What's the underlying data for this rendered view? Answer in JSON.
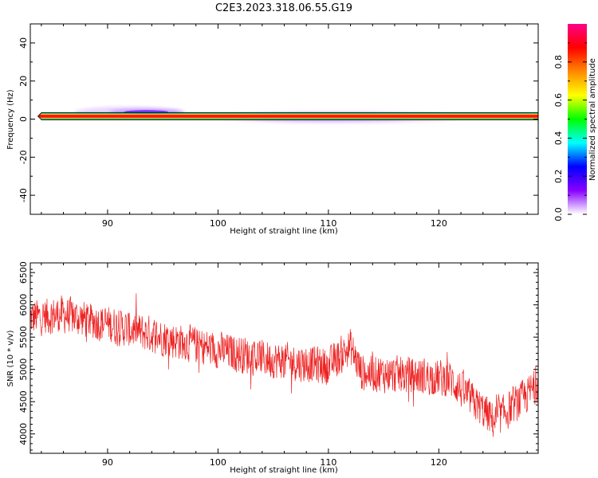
{
  "figure": {
    "title": "C2E3.2023.318.06.55.G19"
  },
  "chart_data": [
    {
      "type": "heatmap",
      "xlabel": "Height of straight line (km)",
      "ylabel": "Frequency (Hz)",
      "xlim": [
        83,
        129
      ],
      "ylim": [
        -50,
        50
      ],
      "xticks": [
        90,
        100,
        110,
        120
      ],
      "yticks": [
        -40,
        -20,
        0,
        20,
        40
      ],
      "band_center_hz": 1.5,
      "band_x_range": [
        83.7,
        129
      ],
      "secondary_lobes": [
        {
          "x_range": [
            87,
            97
          ],
          "center_x": 93.5,
          "y_hz": 3.5,
          "peak_amplitude": 0.25
        },
        {
          "x_range": [
            100,
            122
          ],
          "center_x": 110,
          "y_hz": 1.0,
          "peak_amplitude": 0.15
        }
      ],
      "colorbar": {
        "label": "Normalized spectral amplitude",
        "range": [
          0,
          1
        ],
        "ticks": [
          0.0,
          0.2,
          0.4,
          0.6,
          0.8
        ],
        "colors": [
          "#ffffff",
          "#8800ff",
          "#0000ff",
          "#00ffff",
          "#00ff00",
          "#ffff00",
          "#ff8800",
          "#ff0000",
          "#ff0088"
        ]
      },
      "line_color": "#ff0000"
    },
    {
      "type": "line",
      "xlabel": "Height of straight line (km)",
      "ylabel": "SNR (10 * v/v)",
      "xlim": [
        83,
        129
      ],
      "ylim": [
        3700,
        6650
      ],
      "xticks": [
        90,
        100,
        110,
        120
      ],
      "yticks": [
        4000,
        4500,
        5000,
        5500,
        6000,
        6500
      ],
      "line_color": "#ee2222",
      "trend_points": [
        {
          "x": 83,
          "y": 5800
        },
        {
          "x": 86,
          "y": 5850
        },
        {
          "x": 90,
          "y": 5700
        },
        {
          "x": 95,
          "y": 5500
        },
        {
          "x": 100,
          "y": 5300
        },
        {
          "x": 105,
          "y": 5150
        },
        {
          "x": 110,
          "y": 5050
        },
        {
          "x": 112,
          "y": 5350
        },
        {
          "x": 113,
          "y": 4950
        },
        {
          "x": 118,
          "y": 4900
        },
        {
          "x": 121,
          "y": 4850
        },
        {
          "x": 125,
          "y": 4200
        },
        {
          "x": 128,
          "y": 4600
        },
        {
          "x": 129,
          "y": 4800
        }
      ]
    }
  ]
}
